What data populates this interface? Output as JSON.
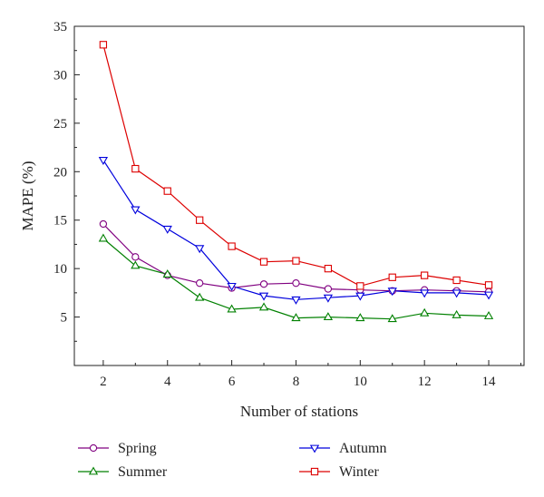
{
  "chart_data": {
    "type": "line",
    "xlabel": "Number of stations",
    "ylabel": "MAPE (%)",
    "xlim": [
      1.1,
      15.1
    ],
    "ylim": [
      0,
      35
    ],
    "xticks": [
      2,
      4,
      6,
      8,
      10,
      12,
      14
    ],
    "yticks": [
      5,
      10,
      15,
      20,
      25,
      30,
      35
    ],
    "x": [
      2,
      3,
      4,
      5,
      6,
      7,
      8,
      9,
      10,
      11,
      12,
      13,
      14
    ],
    "legend_position": "bottom",
    "series": [
      {
        "name": "Spring",
        "color": "#800080",
        "marker": "circle",
        "values": [
          14.6,
          11.2,
          9.3,
          8.5,
          8.0,
          8.4,
          8.5,
          7.9,
          7.8,
          7.7,
          7.8,
          7.7,
          7.6
        ]
      },
      {
        "name": "Summer",
        "color": "#008000",
        "marker": "triangle-up",
        "values": [
          13.1,
          10.3,
          9.4,
          7.0,
          5.8,
          6.0,
          4.9,
          5.0,
          4.9,
          4.8,
          5.4,
          5.2,
          5.1
        ]
      },
      {
        "name": "Autumn",
        "color": "#0000dd",
        "marker": "triangle-down",
        "values": [
          21.2,
          16.1,
          14.1,
          12.1,
          8.2,
          7.2,
          6.8,
          7.0,
          7.2,
          7.7,
          7.5,
          7.5,
          7.3
        ]
      },
      {
        "name": "Winter",
        "color": "#dd0000",
        "marker": "square",
        "values": [
          33.1,
          20.3,
          18.0,
          15.0,
          12.3,
          10.7,
          10.8,
          10.0,
          8.2,
          9.1,
          9.3,
          8.8,
          8.3
        ]
      }
    ]
  }
}
